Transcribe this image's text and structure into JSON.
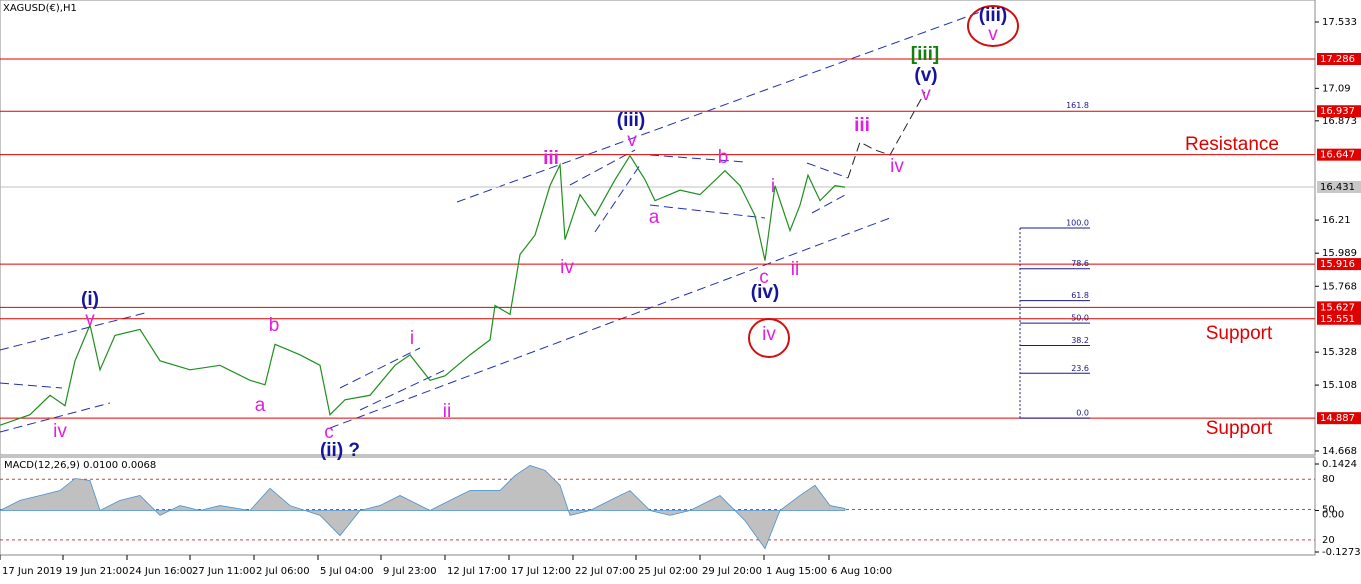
{
  "chart_data": [
    {
      "type": "line",
      "title": "XAGUSD(€),H1",
      "x": [
        0,
        30,
        50,
        65,
        75,
        90,
        100,
        115,
        140,
        160,
        190,
        220,
        250,
        265,
        275,
        300,
        320,
        330,
        345,
        370,
        395,
        410,
        430,
        445,
        470,
        490,
        495,
        510,
        520,
        535,
        550,
        560,
        565,
        580,
        595,
        615,
        630,
        645,
        655,
        680,
        700,
        725,
        740,
        755,
        765,
        775,
        790,
        800,
        808,
        820,
        835,
        845
      ],
      "values": [
        14.84,
        14.91,
        15.04,
        14.97,
        15.27,
        15.51,
        15.21,
        15.44,
        15.48,
        15.27,
        15.21,
        15.24,
        15.14,
        15.11,
        15.38,
        15.31,
        15.24,
        14.91,
        15.01,
        15.04,
        15.24,
        15.31,
        15.14,
        15.17,
        15.31,
        15.41,
        15.64,
        15.58,
        15.98,
        16.11,
        16.44,
        16.58,
        16.08,
        16.38,
        16.24,
        16.48,
        16.64,
        16.48,
        16.34,
        16.41,
        16.38,
        16.54,
        16.44,
        16.24,
        15.94,
        16.44,
        16.14,
        16.31,
        16.51,
        16.34,
        16.44,
        16.43
      ],
      "color": "#1f8f1f",
      "xlim": [
        0,
        1315
      ],
      "xticks": [
        {
          "value": 0,
          "label": "17 Jun 2019"
        },
        {
          "value": 63,
          "label": "19 Jun 21:00"
        },
        {
          "value": 127,
          "label": "24 Jun 16:00"
        },
        {
          "value": 190,
          "label": "27 Jun 11:00"
        },
        {
          "value": 254,
          "label": "2 Jul 06:00"
        },
        {
          "value": 318,
          "label": "5 Jul 04:00"
        },
        {
          "value": 381,
          "label": "9 Jul 23:00"
        },
        {
          "value": 445,
          "label": "12 Jul 17:00"
        },
        {
          "value": 509,
          "label": "17 Jul 12:00"
        },
        {
          "value": 573,
          "label": "22 Jul 07:00"
        },
        {
          "value": 636,
          "label": "25 Jul 02:00"
        },
        {
          "value": 700,
          "label": "29 Jul 20:00"
        },
        {
          "value": 764,
          "label": "1 Aug 15:00"
        },
        {
          "value": 829,
          "label": "6 Aug 10:00"
        }
      ],
      "ylim": [
        14.641,
        17.68
      ],
      "yticks": [
        17.533,
        17.09,
        16.873,
        16.21,
        15.989,
        15.768,
        15.328,
        15.108,
        14.668
      ],
      "levels": [
        {
          "value": 17.286,
          "color": "#e00000"
        },
        {
          "value": 16.937,
          "color": "#e00000"
        },
        {
          "value": 16.647,
          "color": "#e00000"
        },
        {
          "value": 15.916,
          "color": "#e00000"
        },
        {
          "value": 15.627,
          "color": "#e00000"
        },
        {
          "value": 15.551,
          "color": "#e00000"
        },
        {
          "value": 14.887,
          "color": "#e00000"
        }
      ],
      "current_price": 16.431,
      "fibonacci": {
        "anchor_prices": [
          14.887,
          16.157
        ],
        "color": "#1a1a8c",
        "levels": [
          161.8,
          {
            "value": 100,
            "label": "100.0"
          },
          78.6,
          61.8,
          {
            "value": 50,
            "label": "50.0"
          },
          38.2,
          23.6,
          {
            "value": 0,
            "label": "0.0"
          }
        ]
      },
      "annotations": [
        {
          "text": "(i)",
          "color": "#1414a0"
        },
        {
          "text": "v",
          "color": "#e020e0"
        },
        {
          "text": "iv",
          "color": "#e020e0"
        },
        {
          "text": "a",
          "color": "#e020e0"
        },
        {
          "text": "b",
          "color": "#e020e0"
        },
        {
          "text": "c",
          "color": "#e020e0"
        },
        {
          "text": "(ii) ?",
          "color": "#1414a0"
        },
        {
          "text": "i",
          "color": "#e020e0"
        },
        {
          "text": "ii",
          "color": "#e020e0"
        },
        {
          "text": "iii",
          "color": "#e020e0"
        },
        {
          "text": "iv",
          "color": "#e020e0"
        },
        {
          "text": "(iii)",
          "color": "#1414a0"
        },
        {
          "text": "v",
          "color": "#e020e0"
        },
        {
          "text": "a",
          "color": "#e020e0"
        },
        {
          "text": "b",
          "color": "#e020e0"
        },
        {
          "text": "c",
          "color": "#e020e0"
        },
        {
          "text": "(iv)",
          "color": "#1414a0"
        },
        {
          "text": "i",
          "color": "#e020e0"
        },
        {
          "text": "ii",
          "color": "#e020e0"
        },
        {
          "text": "iii",
          "color": "#e020e0"
        },
        {
          "text": "iv",
          "color": "#e020e0"
        },
        {
          "text": "(v)",
          "color": "#1414a0"
        },
        {
          "text": "v",
          "color": "#e020e0"
        },
        {
          "text": "[iii]",
          "color": "#108010"
        },
        {
          "text": "(iii)",
          "color": "#1414a0"
        },
        {
          "text": "v",
          "color": "#e020e0"
        },
        {
          "text": "iv",
          "color": "#e020e0"
        },
        {
          "text": "Resistance",
          "color": "#e00000"
        },
        {
          "text": "Support",
          "color": "#e00000"
        },
        {
          "text": "Support",
          "color": "#e00000"
        }
      ]
    },
    {
      "type": "area",
      "title": "MACD(12,26,9) 0.0100 0.0068",
      "x": [
        0,
        20,
        40,
        60,
        75,
        90,
        100,
        120,
        140,
        160,
        180,
        200,
        220,
        250,
        270,
        290,
        320,
        340,
        360,
        380,
        400,
        430,
        450,
        470,
        500,
        515,
        530,
        545,
        560,
        570,
        590,
        610,
        630,
        650,
        670,
        690,
        720,
        745,
        765,
        780,
        800,
        815,
        830,
        845
      ],
      "values": [
        0,
        0.031,
        0.046,
        0.061,
        0.098,
        0.092,
        0,
        0.031,
        0.046,
        -0.015,
        0.015,
        0,
        0.015,
        0,
        0.068,
        0.015,
        -0.015,
        -0.077,
        0,
        0.015,
        0.046,
        0,
        0.031,
        0.061,
        0.061,
        0.107,
        0.138,
        0.123,
        0.077,
        -0.015,
        0,
        0.031,
        0.061,
        0,
        -0.015,
        0,
        0.046,
        -0.031,
        -0.117,
        0,
        0.046,
        0.077,
        0.015,
        0.006
      ],
      "color": "#c0c0c0",
      "ylim": [
        -0.1365,
        0.1639
      ],
      "yticks": [
        0.1424,
        {
          "value": 0,
          "label": "0.00"
        },
        -0.1273
      ],
      "y2lim": [
        5,
        102
      ],
      "y2ticks": [
        80,
        50,
        20
      ]
    }
  ]
}
